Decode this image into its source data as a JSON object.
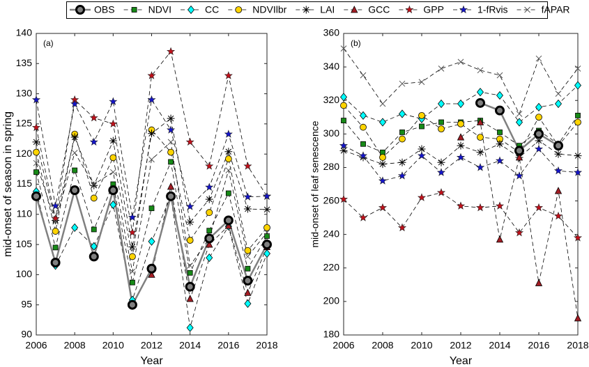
{
  "chart_data": [
    {
      "type": "line",
      "panel_label": "(a)",
      "x_label": "Year",
      "y_label": "mid-onset of season in spring",
      "x": [
        2006,
        2007,
        2008,
        2009,
        2010,
        2011,
        2012,
        2013,
        2014,
        2015,
        2016,
        2017,
        2018
      ],
      "xlim": [
        2006,
        2018
      ],
      "xticks": [
        2006,
        2008,
        2010,
        2012,
        2014,
        2016,
        2018
      ],
      "ylim": [
        90,
        140
      ],
      "yticks": [
        90,
        95,
        100,
        105,
        110,
        115,
        120,
        125,
        130,
        135,
        140
      ],
      "series": [
        {
          "name": "OBS",
          "color": "#808080",
          "line_color": "#808080",
          "line": "solid",
          "marker": "circle",
          "values": [
            113,
            102,
            114,
            103,
            114,
            95,
            101,
            113,
            98,
            106,
            109,
            99,
            105
          ]
        },
        {
          "name": "NDVI",
          "color": "#178a17",
          "line_color": "#000000",
          "line": "dashed",
          "marker": "square",
          "values": [
            117,
            104.5,
            117.3,
            107.5,
            115,
            98.7,
            111,
            118.7,
            100.3,
            107.3,
            113.5,
            101,
            106.4
          ]
        },
        {
          "name": "CC",
          "color": "#00ffff",
          "line_color": "#000000",
          "line": "dashed",
          "marker": "diamond",
          "values": [
            113.8,
            101.5,
            107.8,
            104.7,
            111.6,
            95.8,
            105.5,
            113,
            91.2,
            102.8,
            108,
            95.2,
            103.5
          ]
        },
        {
          "name": "NDVIlbr",
          "color": "#ffd400",
          "line_color": "#000000",
          "line": "dashed",
          "marker": "circle",
          "values": [
            120.3,
            107.2,
            123.3,
            112.7,
            119.4,
            103,
            124,
            120.3,
            105.7,
            110.3,
            119.2,
            104,
            107.8
          ]
        },
        {
          "name": "LAI",
          "color": "#000000",
          "line_color": "#000000",
          "line": "dashed",
          "marker": "asterisk",
          "values": [
            122,
            109,
            122.8,
            114.8,
            122.2,
            104.6,
            123.4,
            125.9,
            108.7,
            112.5,
            120.4,
            110.9,
            110.8
          ]
        },
        {
          "name": "GCC",
          "color": "#a31d24",
          "line_color": "#000000",
          "line": "dashed",
          "marker": "triangle",
          "values": [
            null,
            null,
            null,
            null,
            null,
            null,
            100,
            114.6,
            96,
            105,
            108.1,
            97,
            104.6
          ]
        },
        {
          "name": "GPP",
          "color": "#c0101a",
          "line_color": "#000000",
          "line": "dashed",
          "marker": "star",
          "values": [
            124.4,
            109.3,
            129,
            126,
            125,
            107,
            133,
            137,
            122,
            118,
            133,
            118,
            113
          ]
        },
        {
          "name": "1-fRvis",
          "color": "#1414c8",
          "line_color": "#000000",
          "line": "dashed",
          "marker": "star",
          "values": [
            129,
            111.4,
            128.3,
            122,
            128.7,
            109.5,
            129,
            124,
            111.3,
            114.5,
            123.3,
            112.9,
            113
          ]
        },
        {
          "name": "fAPAR",
          "color": "#555555",
          "line_color": "#000000",
          "line": "dashed",
          "marker": "x",
          "values": [
            118.5,
            108.8,
            120.2,
            115,
            117,
            100.5,
            119.1,
            122,
            101.5,
            106,
            117.3,
            103,
            107
          ]
        }
      ]
    },
    {
      "type": "line",
      "panel_label": "(b)",
      "x_label": "Year",
      "y_label": "mid-onset of leaf senescence",
      "x": [
        2006,
        2007,
        2008,
        2009,
        2010,
        2011,
        2012,
        2013,
        2014,
        2015,
        2016,
        2017,
        2018
      ],
      "xlim": [
        2006,
        2018
      ],
      "xticks": [
        2006,
        2008,
        2010,
        2012,
        2014,
        2016,
        2018
      ],
      "ylim": [
        180,
        360
      ],
      "yticks": [
        180,
        200,
        220,
        240,
        260,
        280,
        300,
        320,
        340,
        360
      ],
      "series": [
        {
          "values": [
            null,
            null,
            null,
            null,
            null,
            null,
            null,
            318.5,
            314,
            290,
            300,
            293,
            null
          ]
        },
        {
          "values": [
            308,
            294,
            289,
            301,
            304.5,
            307,
            307,
            308,
            301,
            293,
            302,
            294,
            311
          ]
        },
        {
          "values": [
            322,
            311,
            307,
            312,
            309,
            318,
            318,
            325,
            323,
            307,
            316,
            318,
            329
          ]
        },
        {
          "values": [
            317,
            304,
            286,
            297,
            311,
            303,
            306,
            298,
            297,
            289,
            310,
            293,
            307
          ]
        },
        {
          "values": [
            290,
            286,
            282,
            283,
            291,
            283,
            293,
            289,
            294,
            286,
            296,
            288,
            287
          ]
        },
        {
          "values": [
            null,
            null,
            null,
            null,
            null,
            null,
            298,
            307,
            237,
            286,
            211,
            266,
            190
          ]
        },
        {
          "values": [
            261,
            250,
            256,
            244,
            262,
            265,
            257,
            256,
            257,
            241,
            256,
            251,
            238
          ]
        },
        {
          "values": [
            293,
            287,
            272,
            275,
            287,
            277,
            286,
            280,
            284,
            275,
            291,
            278,
            277
          ]
        },
        {
          "values": [
            351,
            335,
            318,
            330,
            331,
            339,
            343,
            338,
            335,
            312,
            345,
            324,
            339
          ]
        }
      ]
    }
  ]
}
